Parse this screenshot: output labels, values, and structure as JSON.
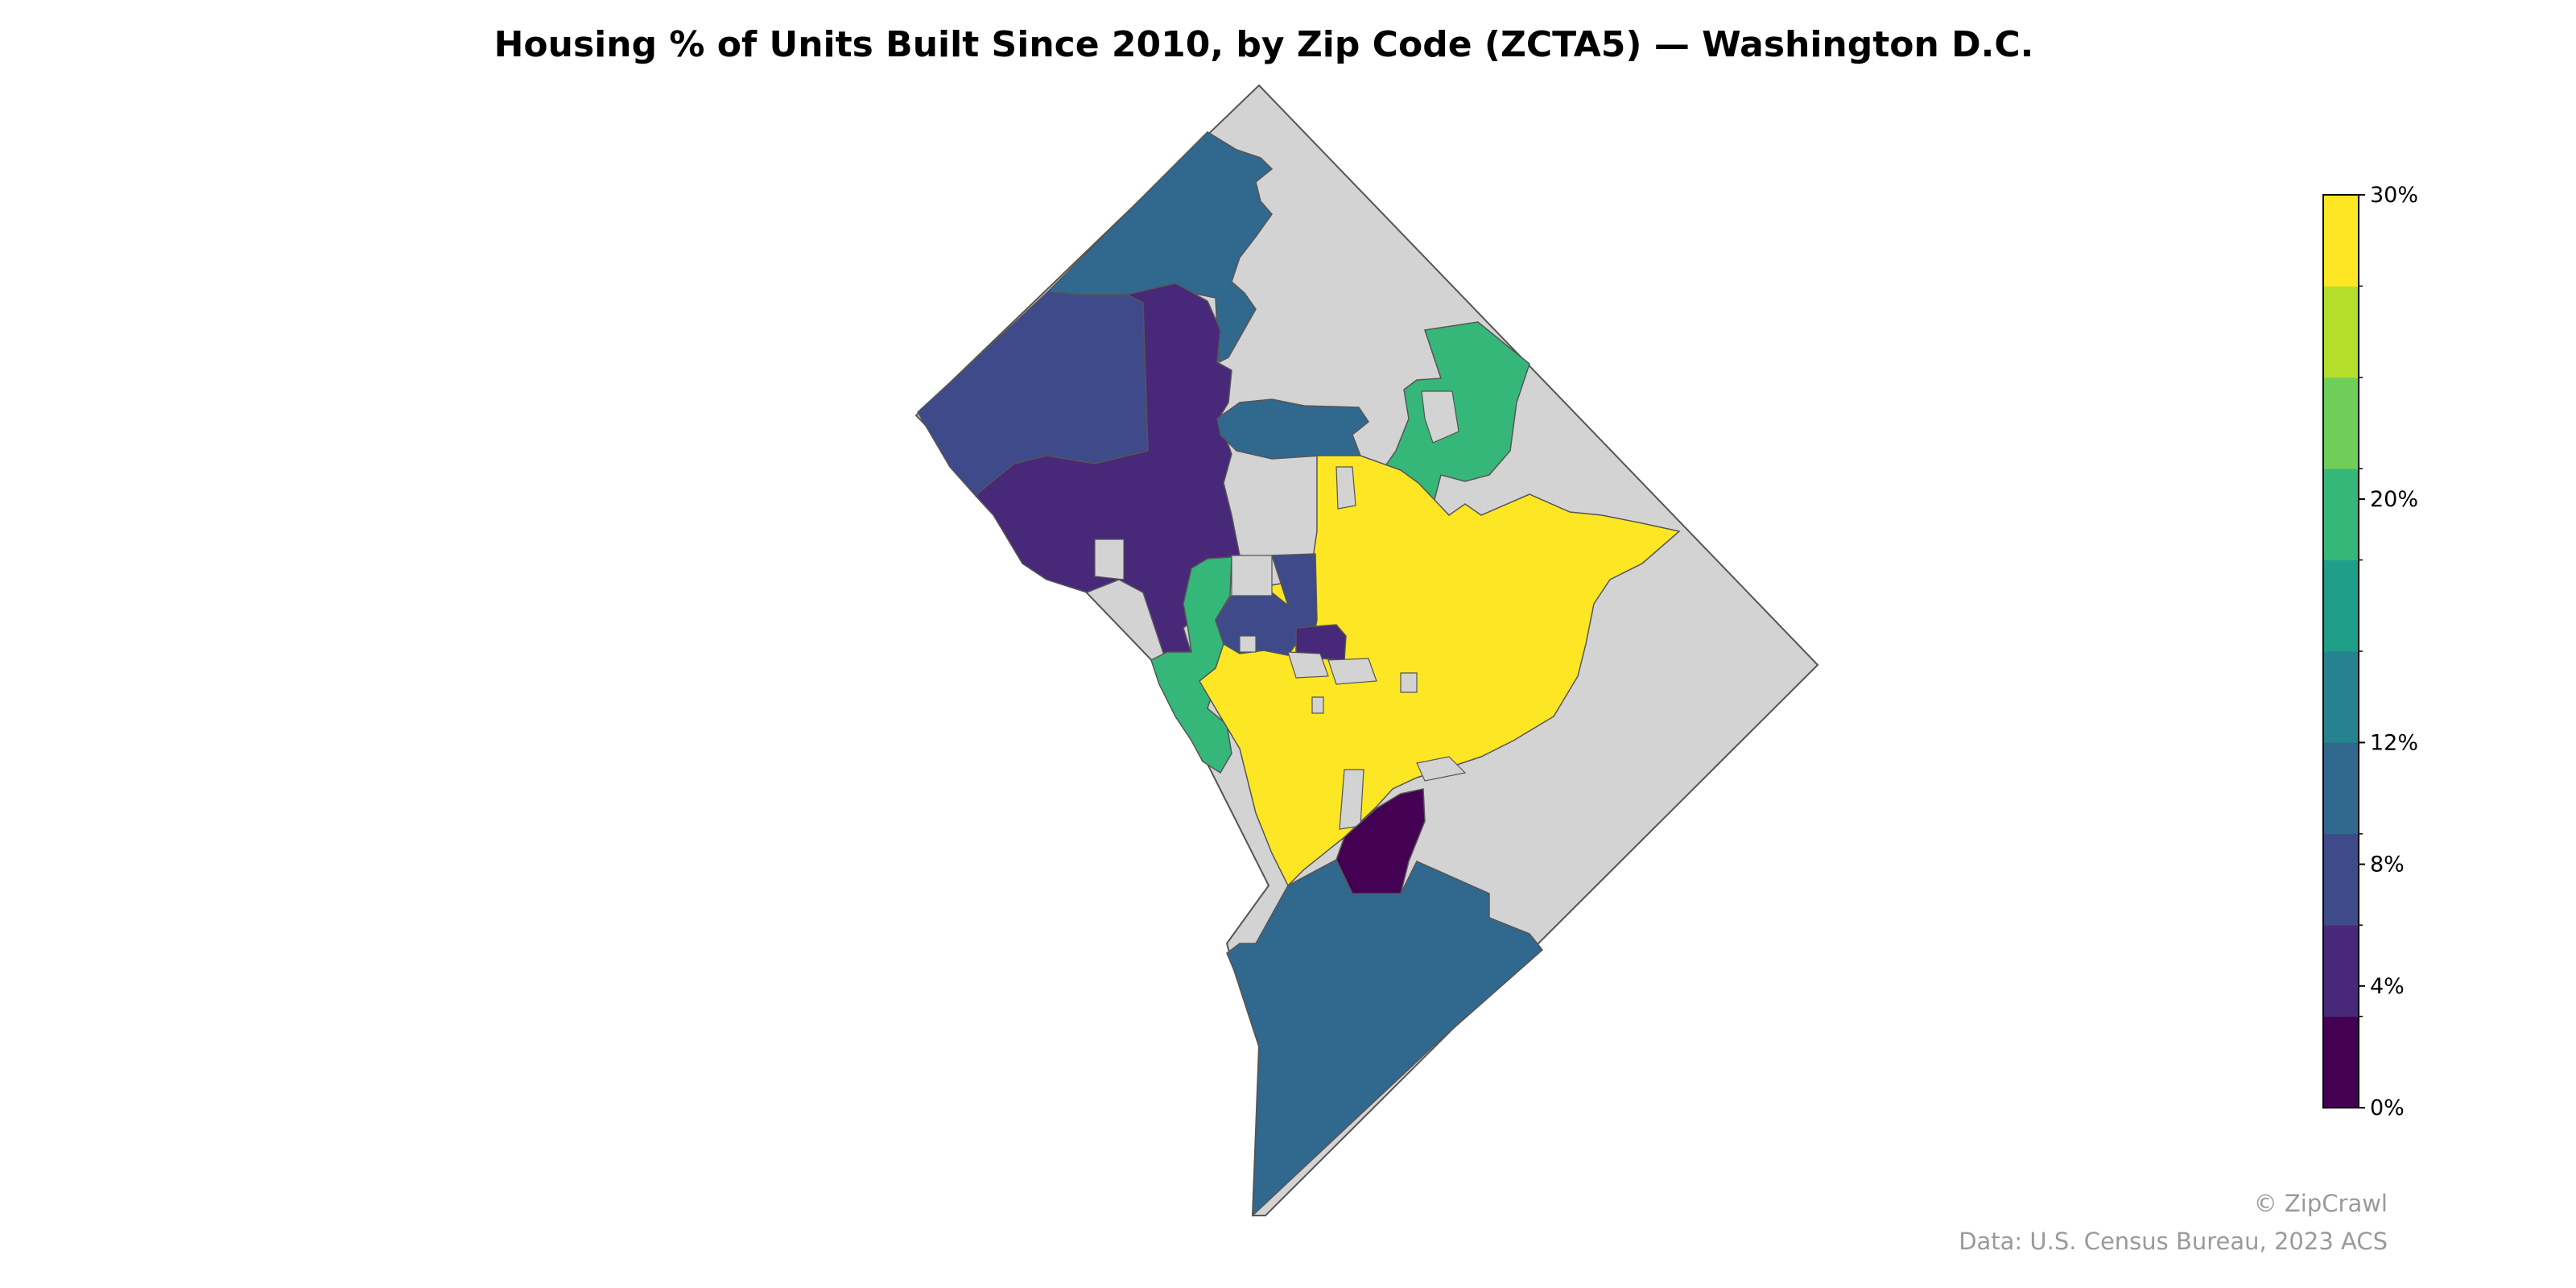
{
  "map": {
    "title": "Housing % of Units Built Since 2010, by Zip Code (ZCTA5) — Washington D.C.",
    "region": "Washington D.C.",
    "geography": "Zip Code (ZCTA5)",
    "metric_unit": "%",
    "no_data_color": "#d3d3d3",
    "border_color": "#555555",
    "region_color_classes": {
      "northwest_upper": "#31688e",
      "northwest_west": "#3e4a89",
      "northwest_central": "#482878",
      "center_green": "#35b779",
      "northeast_green": "#35b779",
      "central_purple_blue": "#3e4a89",
      "central_dark": "#440154",
      "downtown_yellow": "#fde725",
      "northeast_band": "#31688e",
      "southeast_dark": "#440154",
      "south_blue": "#31688e"
    }
  },
  "colorbar": {
    "min": 0,
    "max": 30,
    "step": 2.73,
    "classes": [
      "#440154",
      "#482878",
      "#3e4a89",
      "#31688e",
      "#26828e",
      "#1f9e89",
      "#35b779",
      "#6ece58",
      "#b5de2b",
      "#fde725"
    ],
    "tick_labels": [
      "0%",
      "4%",
      "8%",
      "12%",
      "20%",
      "30%"
    ],
    "tick_values": [
      0,
      4,
      8,
      12,
      20,
      30
    ]
  },
  "footer": {
    "brand": "© ZipCrawl",
    "source": "Data: U.S. Census Bureau, 2023 ACS"
  }
}
